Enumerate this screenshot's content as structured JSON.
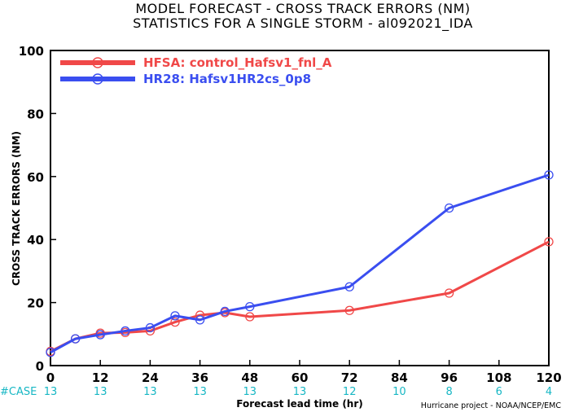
{
  "chart_data": {
    "type": "line",
    "title": "MODEL FORECAST - CROSS TRACK ERRORS (NM)",
    "subtitle": "STATISTICS FOR A SINGLE STORM - al092021_IDA",
    "xlabel": "Forecast lead time (hr)",
    "ylabel": "CROSS TRACK ERRORS (NM)",
    "xlim": [
      0,
      120
    ],
    "ylim": [
      0,
      100
    ],
    "x_ticks": [
      0,
      12,
      24,
      36,
      48,
      60,
      72,
      84,
      96,
      108,
      120
    ],
    "y_ticks": [
      0,
      20,
      40,
      60,
      80,
      100
    ],
    "grid": false,
    "legend_position": "top-left",
    "series": [
      {
        "name": "HFSA: control_Hafsv1_fnl_A",
        "color": "#f04848",
        "x": [
          0,
          6,
          12,
          18,
          24,
          30,
          36,
          42,
          48,
          72,
          96,
          120
        ],
        "values": [
          4.5,
          8.5,
          10.3,
          10.5,
          11.0,
          13.8,
          16.0,
          16.8,
          15.5,
          17.5,
          23.0,
          39.3
        ]
      },
      {
        "name": "HR28: Hafsv1HR2cs_0p8",
        "color": "#3a4ef0",
        "x": [
          0,
          6,
          12,
          18,
          24,
          30,
          36,
          42,
          48,
          72,
          96,
          120
        ],
        "values": [
          4.2,
          8.5,
          9.8,
          11.0,
          12.0,
          15.8,
          14.5,
          17.2,
          18.7,
          25.0,
          50.0,
          60.5
        ]
      }
    ],
    "case_label": "#CASE",
    "case_counts": {
      "x": [
        0,
        12,
        24,
        36,
        48,
        60,
        72,
        84,
        96,
        108,
        120
      ],
      "values": [
        "13",
        "13",
        "13",
        "13",
        "13",
        "13",
        "12",
        "10",
        "8",
        "6",
        "4"
      ]
    },
    "case_color": "#17b7c4"
  },
  "credit": "Hurricane project - NOAA/NCEP/EMC"
}
